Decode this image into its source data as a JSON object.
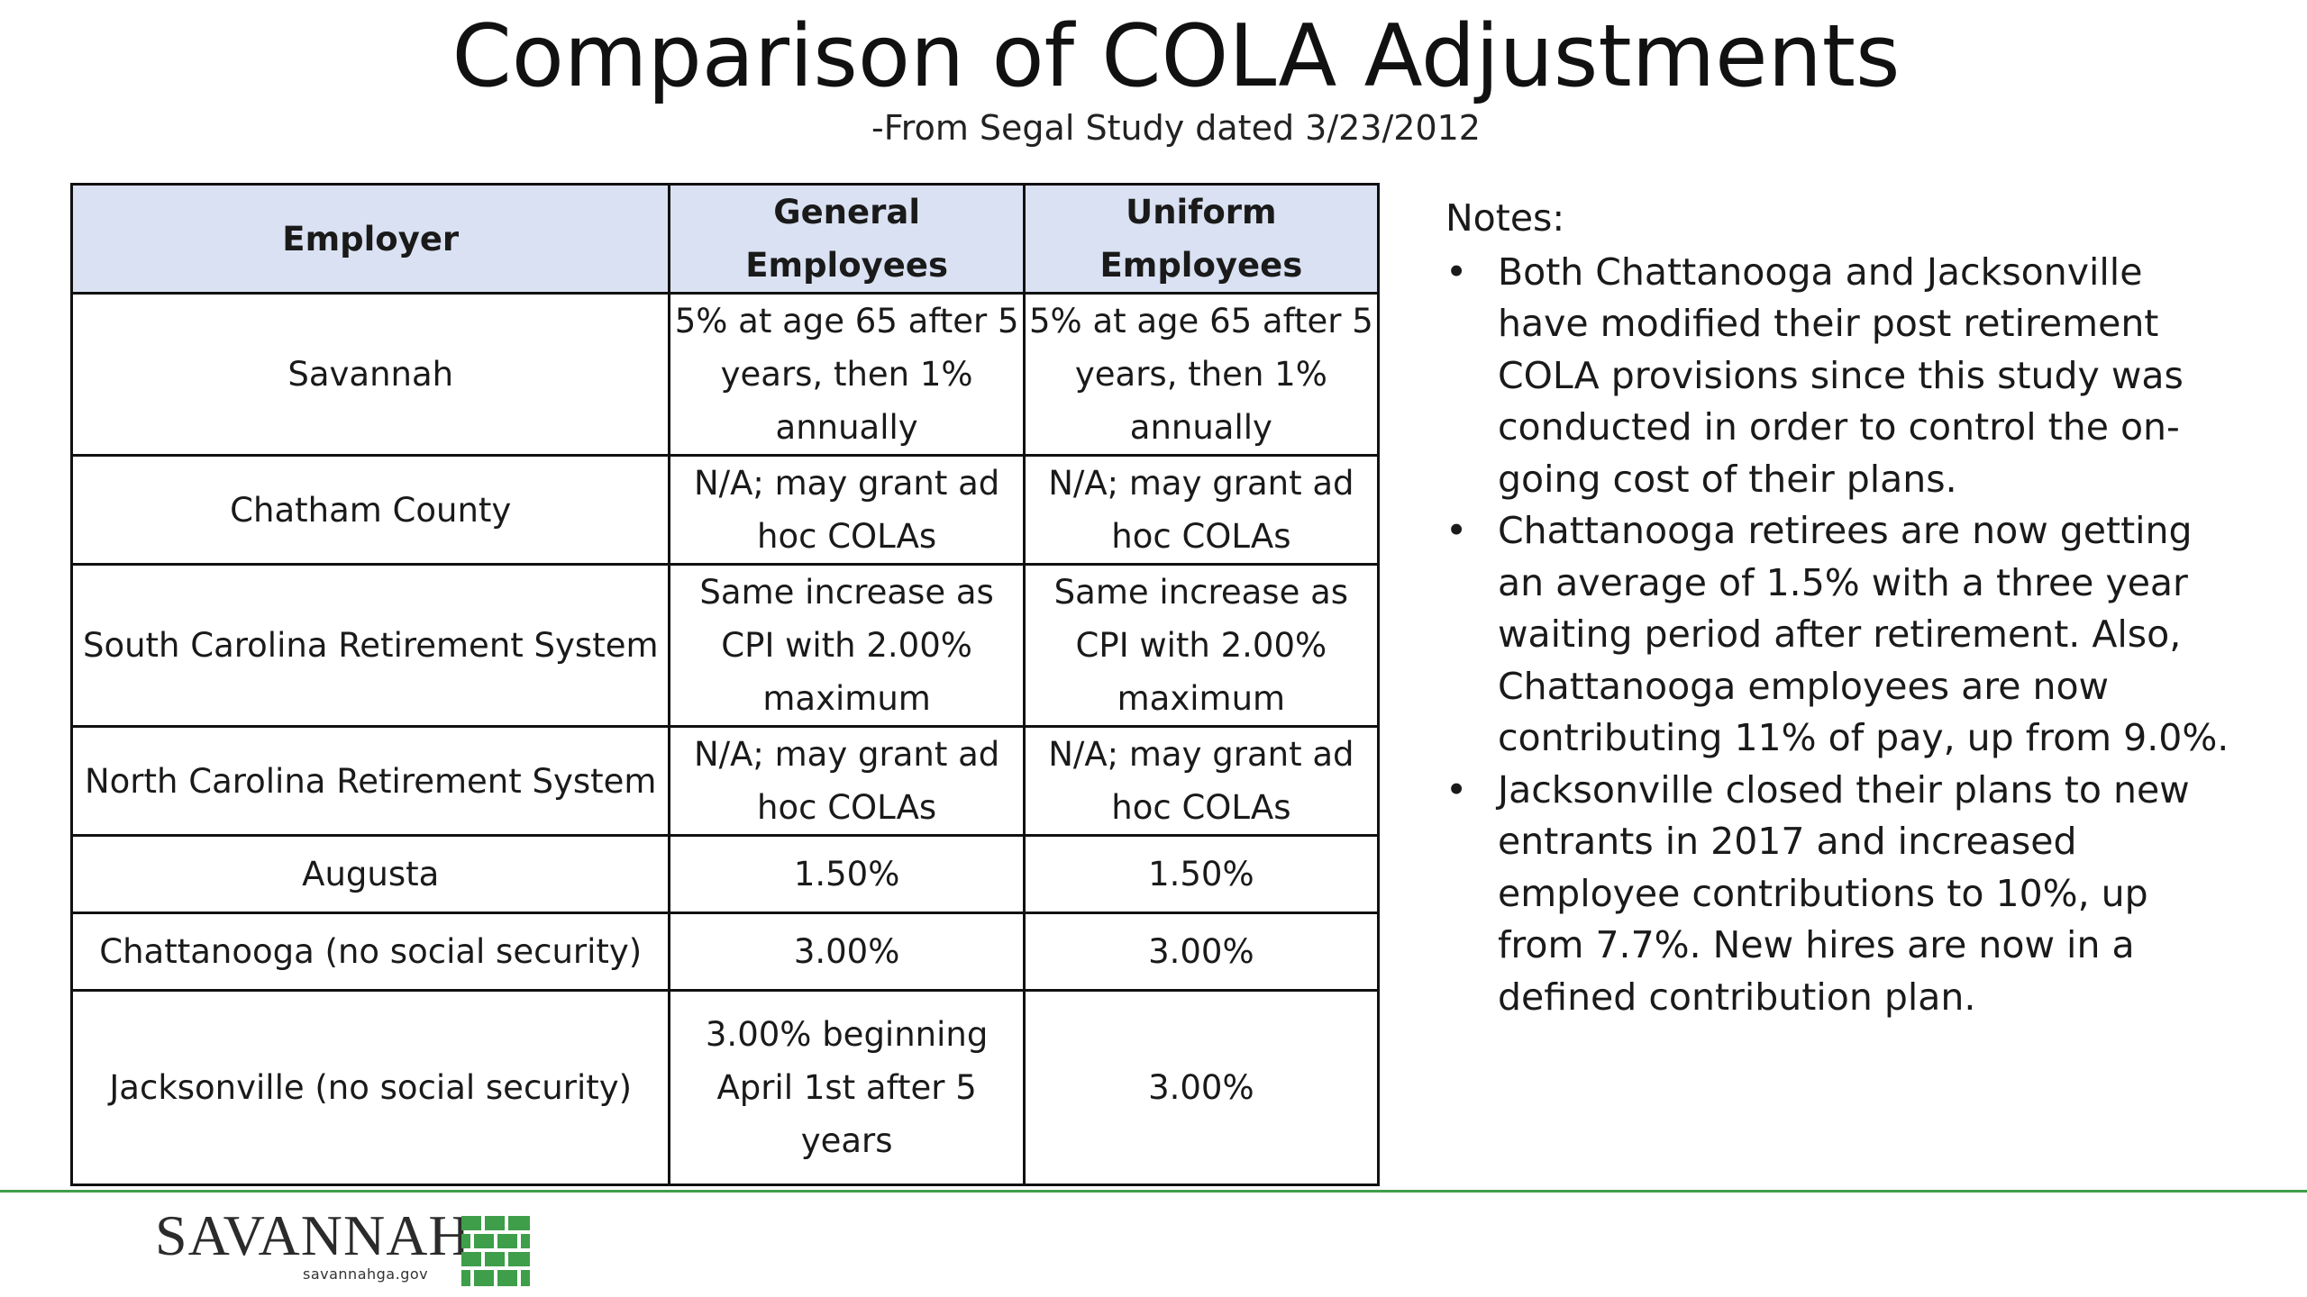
{
  "slide": {
    "title": "Comparison of COLA Adjustments",
    "subtitle": "-From Segal Study dated 3/23/2012"
  },
  "table": {
    "headers": [
      "Employer",
      "General Employees",
      "Uniform Employees"
    ],
    "rows": [
      {
        "employer": "Savannah",
        "general": "5% at age 65 after 5 years, then 1% annually",
        "uniform": "5% at age 65 after 5 years, then 1% annually"
      },
      {
        "employer": "Chatham County",
        "general": "N/A; may grant ad hoc COLAs",
        "uniform": "N/A; may grant ad hoc COLAs"
      },
      {
        "employer": "South Carolina Retirement System",
        "general": "Same increase as CPI with 2.00% maximum",
        "uniform": "Same increase as CPI with 2.00% maximum"
      },
      {
        "employer": "North Carolina Retirement System",
        "general": "N/A; may grant ad hoc COLAs",
        "uniform": "N/A; may grant ad hoc COLAs"
      },
      {
        "employer": "Augusta",
        "general": "1.50%",
        "uniform": "1.50%"
      },
      {
        "employer": "Chattanooga (no social security)",
        "general": "3.00%",
        "uniform": "3.00%"
      },
      {
        "employer": "Jacksonville (no social security)",
        "general": "3.00% beginning April 1st after 5 years",
        "uniform": "3.00%"
      }
    ]
  },
  "notes": {
    "heading": "Notes:",
    "bullet_symbol": "•",
    "items": [
      "Both Chattanooga and Jacksonville have modified their post retirement COLA provisions since this study was conducted in order to control the on-going cost of their plans.",
      "Chattanooga retirees are now getting an average of 1.5% with a three year waiting period after retirement. Also, Chattanooga employees are now contributing 11% of pay, up from 9.0%.",
      "Jacksonville closed their plans to new entrants in 2017 and increased employee contributions to 10%, up from 7.7%. New hires are now in a defined contribution plan."
    ]
  },
  "footer": {
    "logo_text": "SAVANNAH",
    "logo_url_text": "savannahga.gov",
    "accent_color": "#3f9e4a",
    "logo_icon": "brick-wall-icon"
  }
}
